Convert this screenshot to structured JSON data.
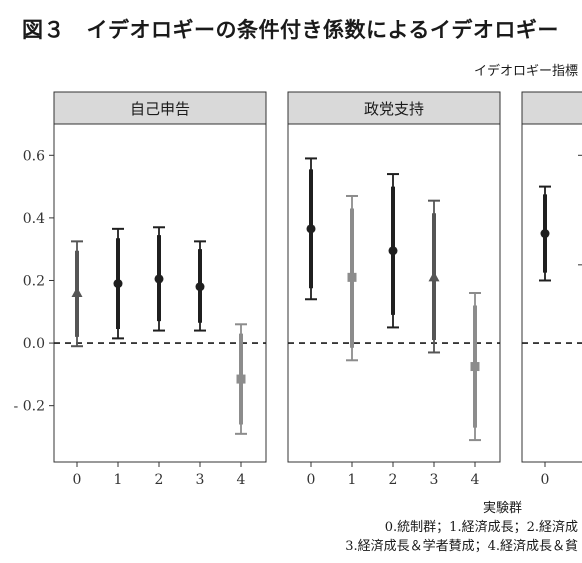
{
  "title": "図３　イデオロギーの条件付き係数によるイデオロギー",
  "chart_data": {
    "type": "scatter",
    "subtitle": "イデオロギー指標",
    "xlabel": "実験群",
    "note_line1": "0.統制群；1.経済成長；2.経済成",
    "note_line2": "3.経済成長＆学者賛成；4.経済成長＆貧",
    "ylim": [
      -0.38,
      0.7
    ],
    "y_ticks": [
      0.6,
      0.4,
      0.2,
      0.0,
      -0.2
    ],
    "y_tick_labels": [
      "0.6",
      "0.4",
      "0.2",
      "0.0",
      "- 0.2"
    ],
    "reference_line": 0.0,
    "colors": {
      "black": "#1f1f1f",
      "darkgray": "#555555",
      "lightgray": "#8c8c8c"
    },
    "panels": [
      {
        "label": "自己申告",
        "categories": [
          "0",
          "1",
          "2",
          "3",
          "4"
        ],
        "points": [
          {
            "x": "0",
            "est": 0.16,
            "lo95": -0.01,
            "hi95": 0.325,
            "lo90": 0.02,
            "hi90": 0.295,
            "shape": "triangle",
            "color": "darkgray"
          },
          {
            "x": "1",
            "est": 0.19,
            "lo95": 0.015,
            "hi95": 0.365,
            "lo90": 0.045,
            "hi90": 0.335,
            "shape": "circle",
            "color": "black"
          },
          {
            "x": "2",
            "est": 0.205,
            "lo95": 0.04,
            "hi95": 0.37,
            "lo90": 0.07,
            "hi90": 0.345,
            "shape": "circle",
            "color": "black"
          },
          {
            "x": "3",
            "est": 0.18,
            "lo95": 0.04,
            "hi95": 0.325,
            "lo90": 0.065,
            "hi90": 0.3,
            "shape": "circle",
            "color": "black"
          },
          {
            "x": "4",
            "est": -0.115,
            "lo95": -0.29,
            "hi95": 0.06,
            "lo90": -0.26,
            "hi90": 0.03,
            "shape": "square",
            "color": "lightgray"
          }
        ]
      },
      {
        "label": "政党支持",
        "categories": [
          "0",
          "1",
          "2",
          "3",
          "4"
        ],
        "points": [
          {
            "x": "0",
            "est": 0.365,
            "lo95": 0.14,
            "hi95": 0.59,
            "lo90": 0.175,
            "hi90": 0.555,
            "shape": "circle",
            "color": "black"
          },
          {
            "x": "1",
            "est": 0.21,
            "lo95": -0.055,
            "hi95": 0.47,
            "lo90": -0.015,
            "hi90": 0.43,
            "shape": "square",
            "color": "lightgray"
          },
          {
            "x": "2",
            "est": 0.295,
            "lo95": 0.05,
            "hi95": 0.54,
            "lo90": 0.09,
            "hi90": 0.5,
            "shape": "circle",
            "color": "black"
          },
          {
            "x": "3",
            "est": 0.21,
            "lo95": -0.03,
            "hi95": 0.455,
            "lo90": 0.01,
            "hi90": 0.415,
            "shape": "triangle",
            "color": "darkgray"
          },
          {
            "x": "4",
            "est": -0.075,
            "lo95": -0.31,
            "hi95": 0.16,
            "lo90": -0.27,
            "hi90": 0.12,
            "shape": "square",
            "color": "lightgray"
          }
        ]
      },
      {
        "label": "",
        "categories": [
          "0"
        ],
        "points": [
          {
            "x": "0",
            "est": 0.35,
            "lo95": 0.2,
            "hi95": 0.5,
            "lo90": 0.225,
            "hi90": 0.475,
            "shape": "circle",
            "color": "black"
          }
        ]
      }
    ]
  }
}
